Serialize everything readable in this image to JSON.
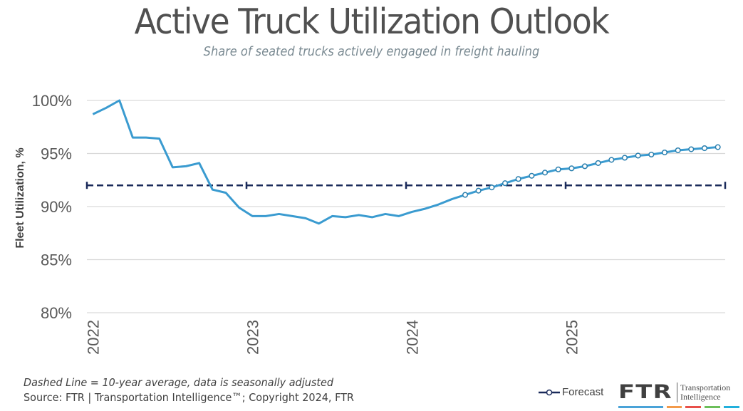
{
  "title": "Active Truck Utilization Outlook",
  "subtitle": "Share of seated trucks actively engaged in freight hauling",
  "footnote": "Dashed Line = 10-year average, data is seasonally adjusted",
  "source": "Source: FTR | Transportation Intelligence™; Copyright 2024, FTR",
  "legend": {
    "forecast_label": "Forecast"
  },
  "logo": {
    "mark": "FTR",
    "line1": "Transportation",
    "line2": "Intelligence",
    "bar_colors": [
      "#4aa3d8",
      "#f39a4a",
      "#e8504a",
      "#6cbf5a",
      "#22b0dc"
    ]
  },
  "colors": {
    "series": "#3a9bd0",
    "average": "#1a2a5a",
    "grid": "#d9d9d9"
  },
  "chart_data": {
    "type": "line",
    "title": "Active Truck Utilization Outlook",
    "subtitle": "Share of seated trucks actively engaged in freight hauling",
    "xlabel": "",
    "ylabel": "Fleet Utilization, %",
    "ylim": [
      80,
      100
    ],
    "yticks": [
      "80%",
      "85%",
      "90%",
      "95%",
      "100%"
    ],
    "ytick_values": [
      80,
      85,
      90,
      95,
      100
    ],
    "xticks": [
      "2022",
      "2023",
      "2024",
      "2025"
    ],
    "grid": true,
    "legend_position": "bottom-right",
    "x": [
      "2022-01",
      "2022-02",
      "2022-03",
      "2022-04",
      "2022-05",
      "2022-06",
      "2022-07",
      "2022-08",
      "2022-09",
      "2022-10",
      "2022-11",
      "2022-12",
      "2023-01",
      "2023-02",
      "2023-03",
      "2023-04",
      "2023-05",
      "2023-06",
      "2023-07",
      "2023-08",
      "2023-09",
      "2023-10",
      "2023-11",
      "2023-12",
      "2024-01",
      "2024-02",
      "2024-03",
      "2024-04",
      "2024-05",
      "2024-06",
      "2024-07",
      "2024-08",
      "2024-09",
      "2024-10",
      "2024-11",
      "2024-12",
      "2025-01",
      "2025-02",
      "2025-03",
      "2025-04",
      "2025-05",
      "2025-06",
      "2025-07",
      "2025-08",
      "2025-09",
      "2025-10",
      "2025-11",
      "2025-12"
    ],
    "series": [
      {
        "name": "Fleet Utilization",
        "values": [
          98.7,
          99.3,
          100.0,
          96.5,
          96.5,
          96.4,
          93.7,
          93.8,
          94.1,
          91.6,
          91.3,
          89.9,
          89.1,
          89.1,
          89.3,
          89.1,
          88.9,
          88.4,
          89.1,
          89.0,
          89.2,
          89.0,
          89.3,
          89.1,
          89.5,
          89.8,
          90.2,
          90.7,
          91.1,
          91.5,
          91.8,
          92.2,
          92.6,
          92.9,
          93.2,
          93.5,
          93.6,
          93.8,
          94.1,
          94.4,
          94.6,
          94.8,
          94.9,
          95.1,
          95.3,
          95.4,
          95.5,
          95.6
        ],
        "forecast_start_index": 28
      },
      {
        "name": "10-year average",
        "style": "dashed",
        "value": 92.0
      }
    ]
  }
}
